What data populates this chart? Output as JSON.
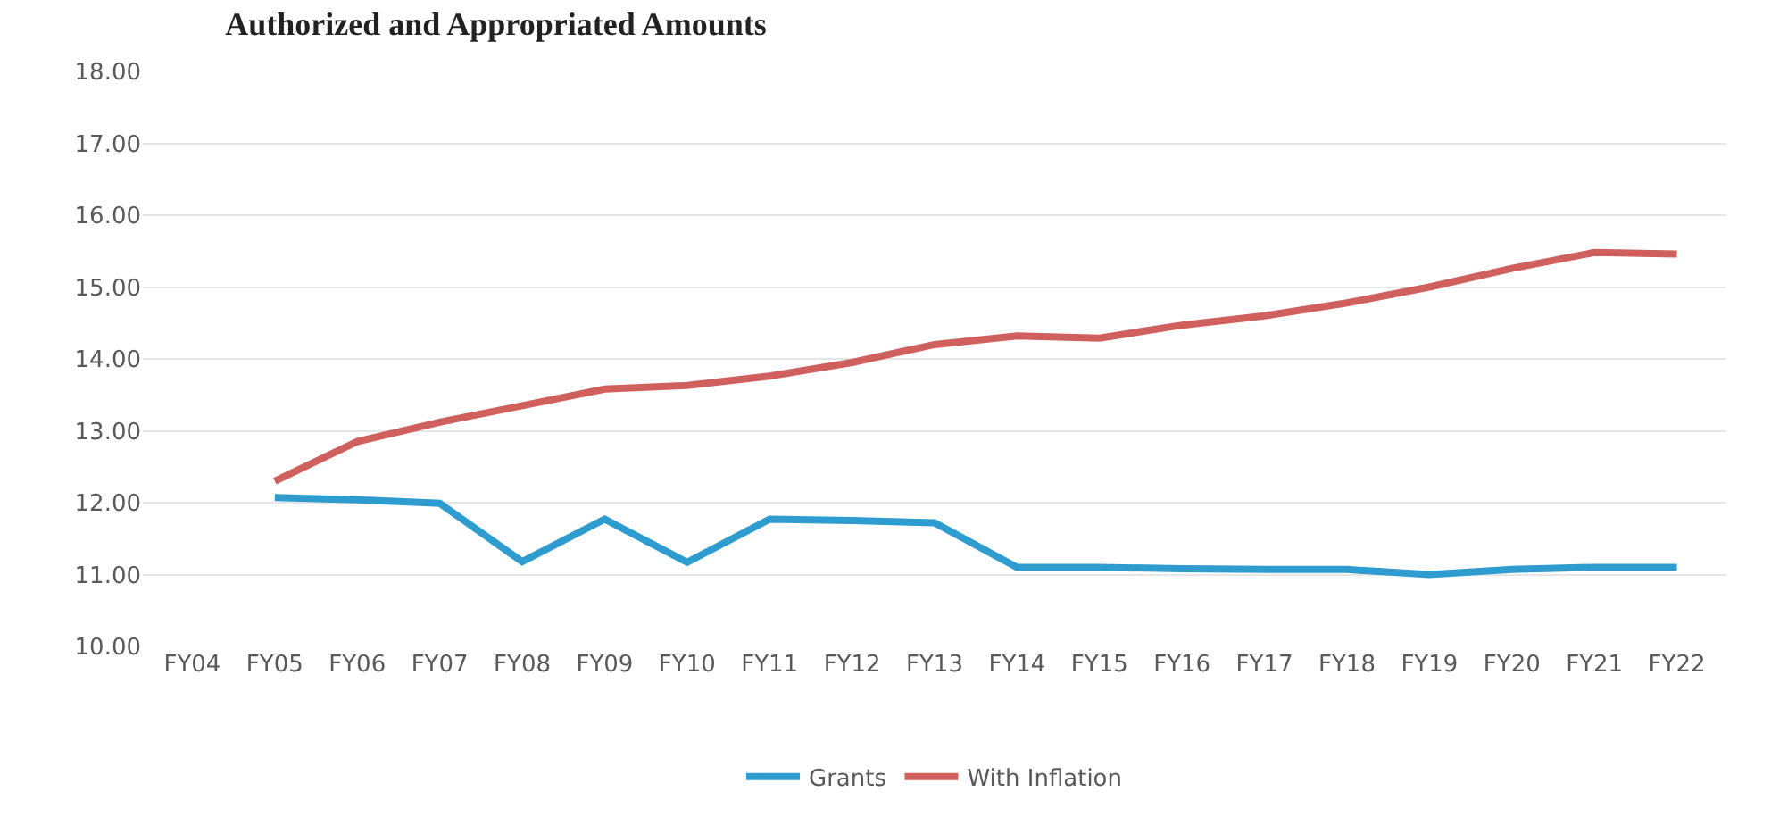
{
  "chart_data": {
    "type": "line",
    "title": "Authorized and Appropriated Amounts",
    "categories": [
      "FY04",
      "FY05",
      "FY06",
      "FY07",
      "FY08",
      "FY09",
      "FY10",
      "FY11",
      "FY12",
      "FY13",
      "FY14",
      "FY15",
      "FY16",
      "FY17",
      "FY18",
      "FY19",
      "FY20",
      "FY21",
      "FY22"
    ],
    "series": [
      {
        "name": "Grants",
        "color": "#2e9ccf",
        "values": [
          null,
          12.07,
          12.04,
          11.99,
          11.18,
          11.77,
          11.17,
          11.77,
          11.75,
          11.72,
          11.1,
          11.1,
          11.08,
          11.07,
          11.07,
          11.0,
          11.07,
          11.1,
          11.1
        ]
      },
      {
        "name": "With Inflation",
        "color": "#d0605e",
        "values": [
          null,
          12.3,
          12.85,
          13.12,
          13.35,
          13.58,
          13.63,
          13.76,
          13.95,
          14.2,
          14.32,
          14.29,
          14.47,
          14.6,
          14.78,
          15.0,
          15.26,
          15.48,
          15.46
        ]
      }
    ],
    "ylim": [
      10,
      18
    ],
    "yticks": [
      {
        "value": 10,
        "label": "10.00"
      },
      {
        "value": 11,
        "label": "11.00"
      },
      {
        "value": 12,
        "label": "12.00"
      },
      {
        "value": 13,
        "label": "13.00"
      },
      {
        "value": 14,
        "label": "14.00"
      },
      {
        "value": 15,
        "label": "15.00"
      },
      {
        "value": 16,
        "label": "16.00"
      },
      {
        "value": 17,
        "label": "17.00"
      },
      {
        "value": 18,
        "label": "18.00"
      }
    ],
    "grid": "y",
    "legend": "bottom",
    "marker": "none",
    "line_style": "solid"
  }
}
